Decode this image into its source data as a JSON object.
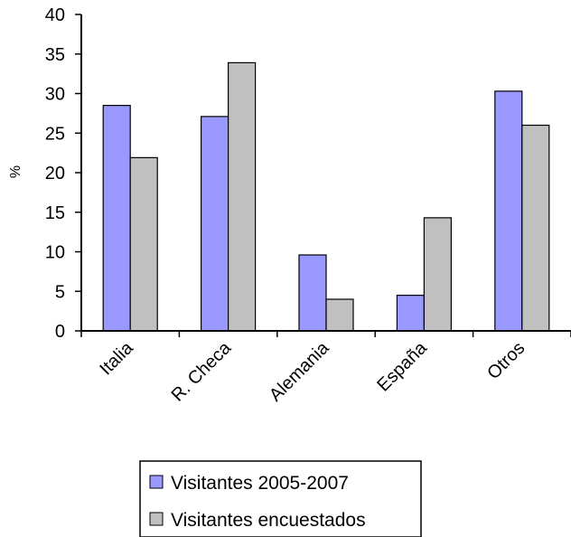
{
  "chart_data": {
    "type": "bar",
    "categories": [
      "Italia",
      "R. Checa",
      "Alemania",
      "España",
      "Otros"
    ],
    "series": [
      {
        "name": "Visitantes 2005-2007",
        "values": [
          28.5,
          27.1,
          9.6,
          4.5,
          30.3
        ],
        "color": "#9999ff"
      },
      {
        "name": "Visitantes encuestados",
        "values": [
          21.9,
          33.9,
          4.0,
          14.3,
          26.0
        ],
        "color": "#c0c0c0"
      }
    ],
    "ylabel": "%",
    "ylim": [
      0,
      40
    ],
    "yticks": [
      0,
      5,
      10,
      15,
      20,
      25,
      30,
      35,
      40
    ],
    "grid": false,
    "legend": "bottom"
  }
}
